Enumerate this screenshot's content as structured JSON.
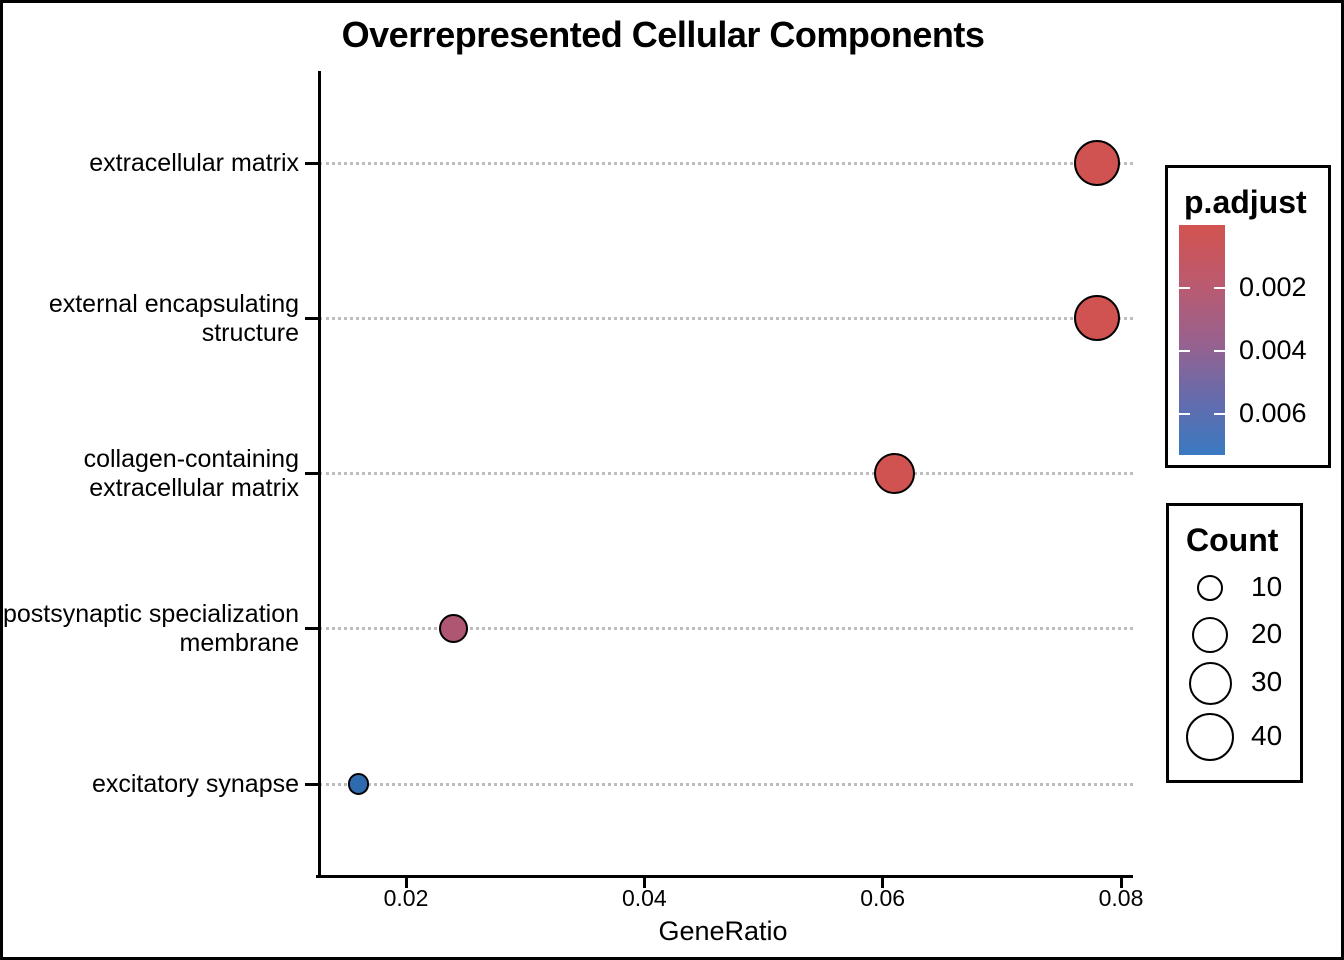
{
  "title": "Overrepresented Cellular Components",
  "chart_data": {
    "type": "scatter",
    "title": "Overrepresented Cellular Components",
    "xlabel": "GeneRatio",
    "ylabel": "",
    "xlim": [
      0.013,
      0.082
    ],
    "x_ticks": [
      0.02,
      0.04,
      0.06,
      0.08
    ],
    "x_tick_labels": [
      "0.02",
      "0.04",
      "0.06",
      "0.08"
    ],
    "grid": "dotted-horizontal",
    "legend_position": "right",
    "categories": [
      {
        "name": "extracellular matrix",
        "label_lines": [
          "extracellular matrix"
        ]
      },
      {
        "name": "external encapsulating structure",
        "label_lines": [
          "external encapsulating",
          "structure"
        ]
      },
      {
        "name": "collagen-containing extracellular matrix",
        "label_lines": [
          "collagen-containing",
          "extracellular matrix"
        ]
      },
      {
        "name": "postsynaptic specialization membrane",
        "label_lines": [
          "postsynaptic specialization",
          "membrane"
        ]
      },
      {
        "name": "excitatory synapse",
        "label_lines": [
          "excitatory synapse"
        ]
      }
    ],
    "points": [
      {
        "category": "extracellular matrix",
        "gene_ratio": 0.078,
        "count": 37,
        "p_adjust_approx": 0.0004,
        "color": "#D15351"
      },
      {
        "category": "external encapsulating structure",
        "gene_ratio": 0.078,
        "count": 37,
        "p_adjust_approx": 0.0004,
        "color": "#D15351"
      },
      {
        "category": "collagen-containing extracellular matrix",
        "gene_ratio": 0.061,
        "count": 30,
        "p_adjust_approx": 0.0006,
        "color": "#D15351"
      },
      {
        "category": "postsynaptic specialization membrane",
        "gene_ratio": 0.024,
        "count": 15,
        "p_adjust_approx": 0.0035,
        "color": "#AF5673"
      },
      {
        "category": "excitatory synapse",
        "gene_ratio": 0.016,
        "count": 8,
        "p_adjust_approx": 0.007,
        "color": "#2E6BAE"
      }
    ],
    "legend_color": {
      "title": "p.adjust",
      "tick_labels": [
        "0.002",
        "0.004",
        "0.006"
      ],
      "tick_values": [
        0.002,
        0.004,
        0.006
      ],
      "top_color": "#D25350",
      "mid_color": "#9A618D",
      "bottom_color": "#3A79C1"
    },
    "legend_size": {
      "title": "Count",
      "entries": [
        {
          "label": "10",
          "value": 10
        },
        {
          "label": "20",
          "value": 20
        },
        {
          "label": "30",
          "value": 30
        },
        {
          "label": "40",
          "value": 40
        }
      ]
    }
  },
  "colors": {
    "background": "#FFFFFF",
    "border": "#000000",
    "axis": "#000000",
    "gridline": "#BDBDBD",
    "dot_stroke": "#000000"
  }
}
